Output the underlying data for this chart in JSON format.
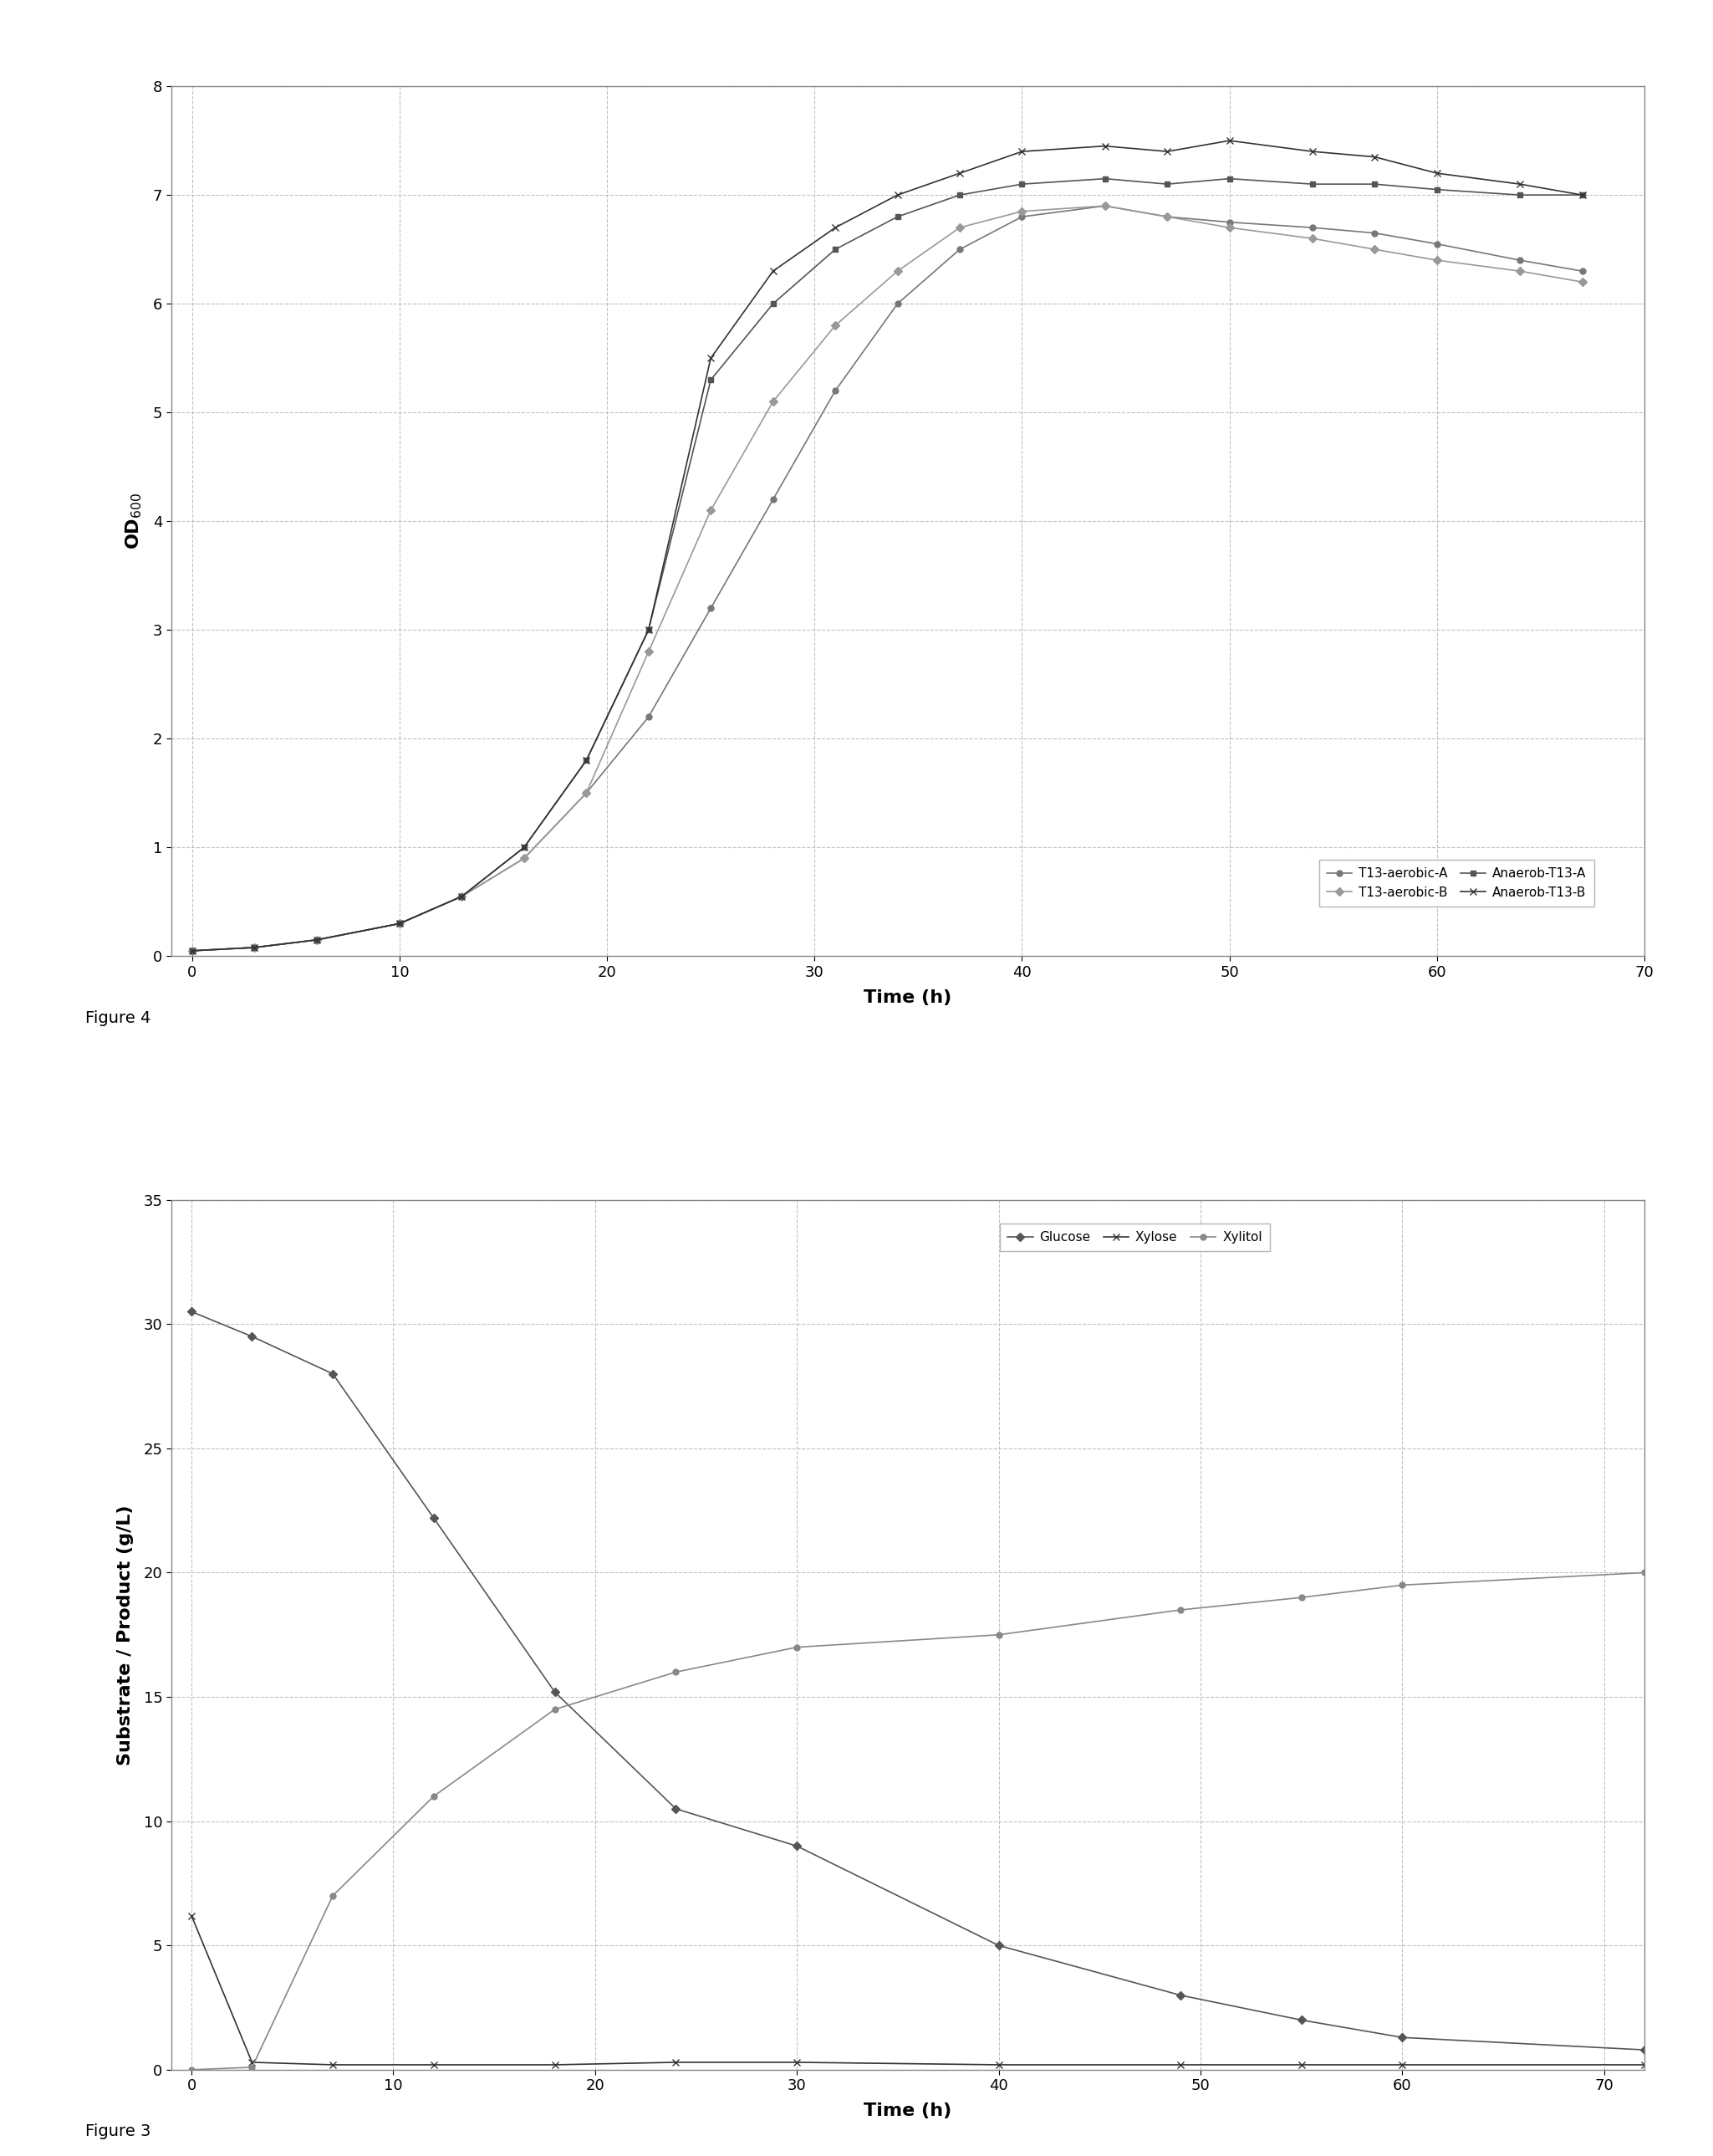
{
  "fig3": {
    "xlabel": "Time (h)",
    "ylabel": "OD$_{600}$",
    "xlim": [
      -1,
      70
    ],
    "ylim": [
      0,
      8
    ],
    "yticks": [
      0,
      1,
      2,
      3,
      4,
      5,
      6,
      7,
      8
    ],
    "xticks": [
      0,
      10,
      20,
      30,
      40,
      50,
      60,
      70
    ],
    "series": {
      "T13-aerobic-A": {
        "x": [
          0,
          3,
          6,
          10,
          13,
          16,
          19,
          22,
          25,
          28,
          31,
          34,
          37,
          40,
          44,
          47,
          50,
          54,
          57,
          60,
          64,
          67
        ],
        "y": [
          0.05,
          0.08,
          0.15,
          0.3,
          0.55,
          0.9,
          1.5,
          2.2,
          3.2,
          4.2,
          5.2,
          6.0,
          6.5,
          6.8,
          6.9,
          6.8,
          6.75,
          6.7,
          6.65,
          6.55,
          6.4,
          6.3
        ],
        "color": "#777777",
        "marker": "o",
        "markersize": 5
      },
      "T13-aerobic-B": {
        "x": [
          0,
          3,
          6,
          10,
          13,
          16,
          19,
          22,
          25,
          28,
          31,
          34,
          37,
          40,
          44,
          47,
          50,
          54,
          57,
          60,
          64,
          67
        ],
        "y": [
          0.05,
          0.08,
          0.15,
          0.3,
          0.55,
          0.9,
          1.5,
          2.8,
          4.1,
          5.1,
          5.8,
          6.3,
          6.7,
          6.85,
          6.9,
          6.8,
          6.7,
          6.6,
          6.5,
          6.4,
          6.3,
          6.2
        ],
        "color": "#999999",
        "marker": "D",
        "markersize": 5
      },
      "Anaerob-T13-A": {
        "x": [
          0,
          3,
          6,
          10,
          13,
          16,
          19,
          22,
          25,
          28,
          31,
          34,
          37,
          40,
          44,
          47,
          50,
          54,
          57,
          60,
          64,
          67
        ],
        "y": [
          0.05,
          0.08,
          0.15,
          0.3,
          0.55,
          1.0,
          1.8,
          3.0,
          5.3,
          6.0,
          6.5,
          6.8,
          7.0,
          7.1,
          7.15,
          7.1,
          7.15,
          7.1,
          7.1,
          7.05,
          7.0,
          7.0
        ],
        "color": "#555555",
        "marker": "s",
        "markersize": 5
      },
      "Anaerob-T13-B": {
        "x": [
          0,
          3,
          6,
          10,
          13,
          16,
          19,
          22,
          25,
          28,
          31,
          34,
          37,
          40,
          44,
          47,
          50,
          54,
          57,
          60,
          64,
          67
        ],
        "y": [
          0.05,
          0.08,
          0.15,
          0.3,
          0.55,
          1.0,
          1.8,
          3.0,
          5.5,
          6.3,
          6.7,
          7.0,
          7.2,
          7.4,
          7.45,
          7.4,
          7.5,
          7.4,
          7.35,
          7.2,
          7.1,
          7.0
        ],
        "color": "#333333",
        "marker": "x",
        "markersize": 6
      }
    },
    "figure_label": "Figure 3"
  },
  "fig4": {
    "xlabel": "Time (h)",
    "ylabel": "Substrate / Product (g/L)",
    "xlim": [
      -1,
      72
    ],
    "ylim": [
      0,
      35
    ],
    "yticks": [
      0,
      5,
      10,
      15,
      20,
      25,
      30,
      35
    ],
    "xticks": [
      0,
      10,
      20,
      30,
      40,
      50,
      60,
      70
    ],
    "series": {
      "Glucose": {
        "x": [
          0,
          3,
          7,
          12,
          18,
          24,
          30,
          40,
          49,
          55,
          60,
          72
        ],
        "y": [
          30.5,
          29.5,
          28.0,
          22.2,
          15.2,
          10.5,
          9.0,
          5.0,
          3.0,
          2.0,
          1.3,
          0.8
        ],
        "color": "#555555",
        "marker": "D",
        "markersize": 5
      },
      "Xylose": {
        "x": [
          0,
          3,
          7,
          12,
          18,
          24,
          30,
          40,
          49,
          55,
          60,
          72
        ],
        "y": [
          6.2,
          0.3,
          0.2,
          0.2,
          0.2,
          0.3,
          0.3,
          0.2,
          0.2,
          0.2,
          0.2,
          0.2
        ],
        "color": "#333333",
        "marker": "x",
        "markersize": 6
      },
      "Xylitol": {
        "x": [
          0,
          3,
          7,
          12,
          18,
          24,
          30,
          40,
          49,
          55,
          60,
          72
        ],
        "y": [
          0.0,
          0.1,
          7.0,
          11.0,
          14.5,
          16.0,
          17.0,
          17.5,
          18.5,
          19.0,
          19.5,
          20.0
        ],
        "color": "#888888",
        "marker": "o",
        "markersize": 5
      }
    },
    "figure_label": "Figure 4"
  }
}
